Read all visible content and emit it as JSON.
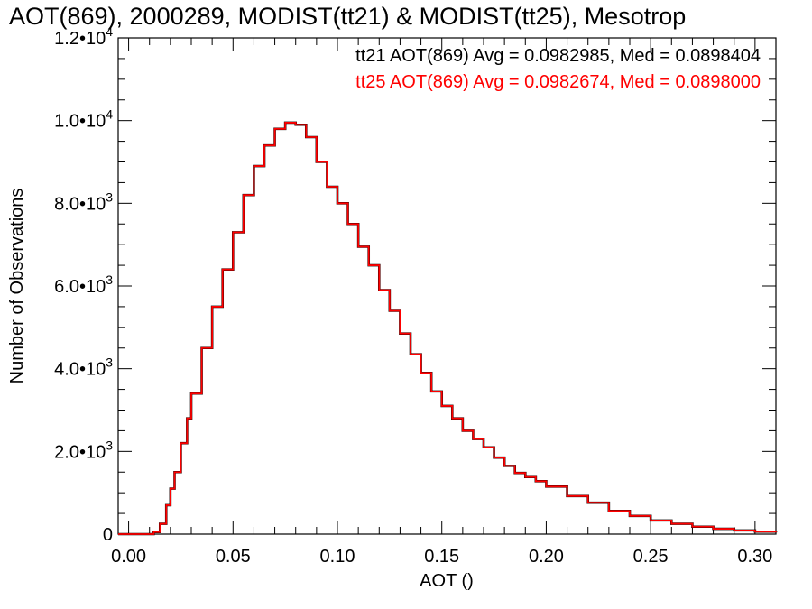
{
  "chart_data": {
    "type": "line",
    "title": "AOT(869), 2000289, MODIST(tt21) & MODIST(tt25), Mesotrop",
    "xlabel": "AOT ()",
    "ylabel": "Number of Observations",
    "xlim": [
      -0.005,
      0.31
    ],
    "ylim": [
      0,
      12000
    ],
    "x_ticks": [
      {
        "value": 0.0,
        "label": "0.00"
      },
      {
        "value": 0.05,
        "label": "0.05"
      },
      {
        "value": 0.1,
        "label": "0.10"
      },
      {
        "value": 0.15,
        "label": "0.15"
      },
      {
        "value": 0.2,
        "label": "0.20"
      },
      {
        "value": 0.25,
        "label": "0.25"
      },
      {
        "value": 0.3,
        "label": "0.30"
      }
    ],
    "y_ticks": [
      {
        "value": 0,
        "mantissa": "0",
        "exponent": ""
      },
      {
        "value": 2000,
        "mantissa": "2.0•10",
        "exponent": "3"
      },
      {
        "value": 4000,
        "mantissa": "4.0•10",
        "exponent": "3"
      },
      {
        "value": 6000,
        "mantissa": "6.0•10",
        "exponent": "3"
      },
      {
        "value": 8000,
        "mantissa": "8.0•10",
        "exponent": "3"
      },
      {
        "value": 10000,
        "mantissa": "1.0•10",
        "exponent": "4"
      },
      {
        "value": 12000,
        "mantissa": "1.2•10",
        "exponent": "4"
      }
    ],
    "x": [
      -0.005,
      0.0,
      0.005,
      0.01,
      0.012,
      0.015,
      0.018,
      0.02,
      0.022,
      0.025,
      0.028,
      0.03,
      0.035,
      0.04,
      0.045,
      0.05,
      0.055,
      0.06,
      0.065,
      0.07,
      0.075,
      0.08,
      0.085,
      0.09,
      0.095,
      0.1,
      0.105,
      0.11,
      0.115,
      0.12,
      0.125,
      0.13,
      0.135,
      0.14,
      0.145,
      0.15,
      0.155,
      0.16,
      0.165,
      0.17,
      0.175,
      0.18,
      0.185,
      0.19,
      0.195,
      0.2,
      0.21,
      0.22,
      0.23,
      0.24,
      0.25,
      0.26,
      0.27,
      0.28,
      0.29,
      0.3,
      0.31
    ],
    "series": [
      {
        "name": "tt21",
        "color": "#000000",
        "values": [
          0,
          0,
          0,
          0,
          50,
          250,
          700,
          1100,
          1500,
          2200,
          2800,
          3400,
          4500,
          5500,
          6400,
          7300,
          8200,
          8900,
          9400,
          9800,
          9950,
          9900,
          9600,
          9000,
          8400,
          8000,
          7500,
          6950,
          6500,
          5900,
          5400,
          4850,
          4350,
          3900,
          3450,
          3100,
          2800,
          2500,
          2300,
          2100,
          1850,
          1650,
          1480,
          1380,
          1280,
          1150,
          920,
          760,
          560,
          440,
          330,
          250,
          180,
          130,
          90,
          60,
          40
        ]
      },
      {
        "name": "tt25",
        "color": "#ff0000",
        "values": [
          0,
          0,
          0,
          0,
          50,
          250,
          700,
          1100,
          1500,
          2200,
          2800,
          3400,
          4500,
          5500,
          6400,
          7300,
          8200,
          8900,
          9400,
          9800,
          9950,
          9900,
          9600,
          9000,
          8400,
          8000,
          7500,
          6950,
          6500,
          5900,
          5400,
          4850,
          4350,
          3900,
          3450,
          3100,
          2800,
          2500,
          2300,
          2100,
          1850,
          1650,
          1480,
          1380,
          1280,
          1150,
          920,
          760,
          560,
          440,
          330,
          250,
          180,
          130,
          90,
          60,
          40
        ]
      }
    ],
    "annotations": [
      {
        "text": "tt21 AOT(869) Avg = 0.0982985, Med = 0.0898404",
        "color": "#000000"
      },
      {
        "text": "tt25 AOT(869) Avg = 0.0982674, Med = 0.0898000",
        "color": "#ff0000"
      }
    ],
    "grid": false
  }
}
